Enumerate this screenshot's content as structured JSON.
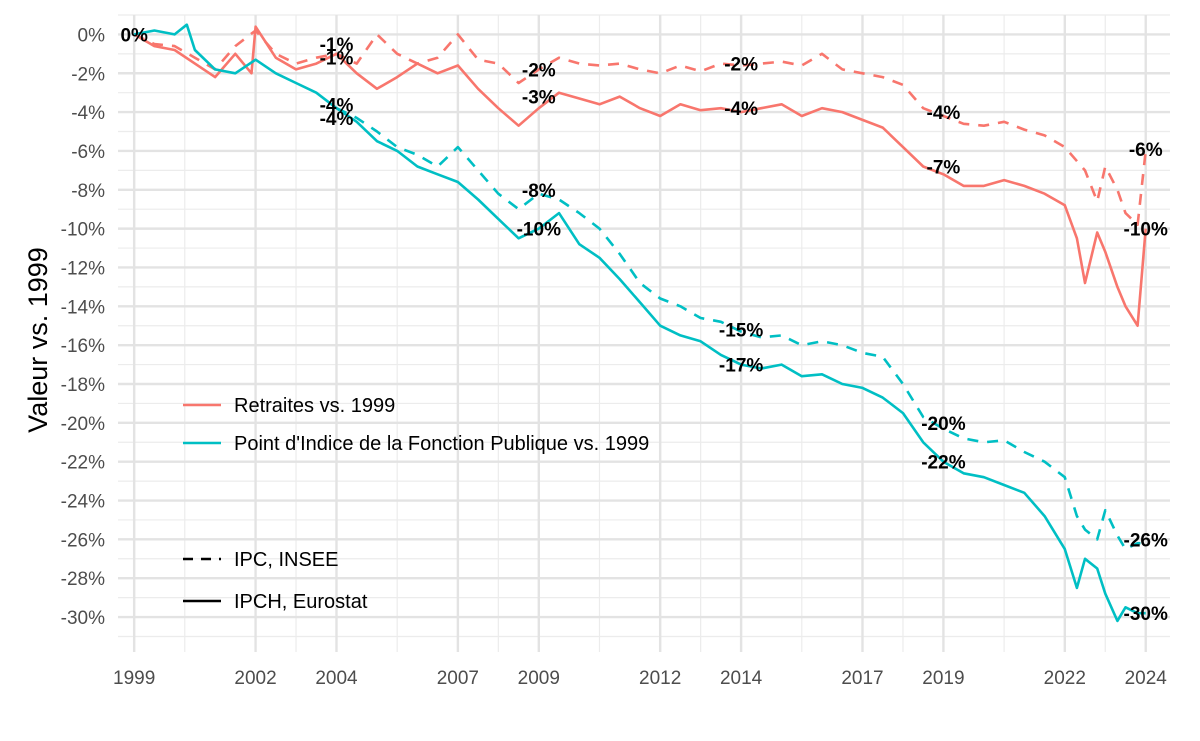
{
  "chart_data": {
    "type": "line",
    "ylabel": "Valeur vs. 1999",
    "xlabel": "",
    "title": "",
    "xlim": [
      1998.6,
      2024.6
    ],
    "ylim": [
      -31.8,
      1.0
    ],
    "x_ticks": [
      1999,
      2002,
      2004,
      2007,
      2009,
      2012,
      2014,
      2017,
      2019,
      2022,
      2024
    ],
    "x_minor_ticks": [
      2000.25,
      2003,
      2005.5,
      2008,
      2010.5,
      2013,
      2015.5,
      2018,
      2020.5,
      2023
    ],
    "y_ticks": [
      0,
      -2,
      -4,
      -6,
      -8,
      -10,
      -12,
      -14,
      -16,
      -18,
      -20,
      -22,
      -24,
      -26,
      -28,
      -30
    ],
    "y_tick_labels": [
      "0%",
      "-2%",
      "-4%",
      "-6%",
      "-8%",
      "-10%",
      "-12%",
      "-14%",
      "-16%",
      "-18%",
      "-20%",
      "-22%",
      "-24%",
      "-26%",
      "-28%",
      "-30%"
    ],
    "x_tick_labels": [
      "1999",
      "2002",
      "2004",
      "2007",
      "2009",
      "2012",
      "2014",
      "2017",
      "2019",
      "2022",
      "2024"
    ],
    "grid": true,
    "legend_color": {
      "position": "middle-left",
      "entries": [
        {
          "key": "retraites",
          "label": "Retraites vs. 1999",
          "color": "#F8766D"
        },
        {
          "key": "point",
          "label": "Point d'Indice de la Fonction Publique vs. 1999",
          "color": "#00BFC4"
        }
      ]
    },
    "legend_linetype": {
      "position": "bottom-left",
      "entries": [
        {
          "key": "dashed",
          "label": "IPC, INSEE",
          "dash": "dashed"
        },
        {
          "key": "solid",
          "label": "IPCH, Eurostat",
          "dash": "solid"
        }
      ]
    },
    "series": [
      {
        "name": "Retraites vs. 1999",
        "color": "#F8766D",
        "linetype": "solid",
        "x": [
          1999.0,
          1999.5,
          2000.0,
          2000.5,
          2001.0,
          2001.5,
          2001.9,
          2002.0,
          2002.5,
          2003.0,
          2003.5,
          2004.0,
          2004.5,
          2005.0,
          2005.5,
          2006.0,
          2006.5,
          2007.0,
          2007.5,
          2008.0,
          2008.5,
          2009.0,
          2009.5,
          2010.0,
          2010.5,
          2011.0,
          2011.5,
          2012.0,
          2012.5,
          2013.0,
          2013.5,
          2014.0,
          2014.5,
          2015.0,
          2015.5,
          2016.0,
          2016.5,
          2017.0,
          2017.5,
          2018.0,
          2018.5,
          2019.0,
          2019.5,
          2020.0,
          2020.5,
          2021.0,
          2021.5,
          2022.0,
          2022.3,
          2022.5,
          2022.8,
          2023.0,
          2023.3,
          2023.5,
          2023.8,
          2024.0
        ],
        "y": [
          0.0,
          -0.6,
          -0.8,
          -1.5,
          -2.2,
          -1.0,
          -2.0,
          0.4,
          -1.2,
          -1.8,
          -1.5,
          -1.0,
          -2.0,
          -2.8,
          -2.2,
          -1.5,
          -2.0,
          -1.6,
          -2.8,
          -3.8,
          -4.7,
          -3.8,
          -3.0,
          -3.3,
          -3.6,
          -3.2,
          -3.8,
          -4.2,
          -3.6,
          -3.9,
          -3.8,
          -4.0,
          -3.8,
          -3.6,
          -4.2,
          -3.8,
          -4.0,
          -4.4,
          -4.8,
          -5.8,
          -6.8,
          -7.2,
          -7.8,
          -7.8,
          -7.5,
          -7.8,
          -8.2,
          -8.8,
          -10.5,
          -12.8,
          -10.2,
          -11.2,
          -13.0,
          -14.0,
          -15.0,
          -10.0
        ]
      },
      {
        "name": "Retraites vs. 1999",
        "color": "#F8766D",
        "linetype": "dashed",
        "x": [
          1999.0,
          1999.5,
          2000.0,
          2000.5,
          2001.0,
          2001.5,
          2002.0,
          2002.5,
          2003.0,
          2003.5,
          2004.0,
          2004.5,
          2005.0,
          2005.5,
          2006.0,
          2006.5,
          2007.0,
          2007.5,
          2008.0,
          2008.5,
          2009.0,
          2009.5,
          2010.0,
          2010.5,
          2011.0,
          2011.5,
          2012.0,
          2012.5,
          2013.0,
          2013.5,
          2014.0,
          2014.5,
          2015.0,
          2015.5,
          2016.0,
          2016.5,
          2017.0,
          2017.5,
          2018.0,
          2018.5,
          2019.0,
          2019.5,
          2020.0,
          2020.5,
          2021.0,
          2021.5,
          2022.0,
          2022.5,
          2022.8,
          2023.0,
          2023.3,
          2023.5,
          2023.8,
          2024.0
        ],
        "y": [
          0.0,
          -0.5,
          -0.6,
          -1.2,
          -1.8,
          -0.6,
          0.2,
          -1.0,
          -1.5,
          -1.2,
          -1.0,
          -1.5,
          0.0,
          -1.0,
          -1.5,
          -1.2,
          0.0,
          -1.3,
          -1.5,
          -2.5,
          -1.8,
          -1.2,
          -1.5,
          -1.6,
          -1.5,
          -1.8,
          -2.0,
          -1.6,
          -1.9,
          -1.5,
          -1.6,
          -1.5,
          -1.4,
          -1.6,
          -1.0,
          -1.8,
          -2.0,
          -2.2,
          -2.6,
          -3.8,
          -4.2,
          -4.6,
          -4.7,
          -4.5,
          -4.9,
          -5.2,
          -5.8,
          -7.0,
          -8.6,
          -6.8,
          -8.0,
          -9.2,
          -9.8,
          -6.0
        ]
      },
      {
        "name": "Point d'Indice de la Fonction Publique vs. 1999",
        "color": "#00BFC4",
        "linetype": "solid",
        "x": [
          1999.0,
          1999.5,
          2000.0,
          2000.3,
          2000.5,
          2001.0,
          2001.5,
          2002.0,
          2002.5,
          2003.0,
          2003.5,
          2004.0,
          2004.5,
          2005.0,
          2005.5,
          2006.0,
          2006.5,
          2007.0,
          2007.5,
          2008.0,
          2008.5,
          2009.0,
          2009.5,
          2010.0,
          2010.5,
          2011.0,
          2011.5,
          2012.0,
          2012.5,
          2013.0,
          2013.5,
          2014.0,
          2014.5,
          2015.0,
          2015.5,
          2016.0,
          2016.5,
          2017.0,
          2017.5,
          2018.0,
          2018.5,
          2019.0,
          2019.5,
          2020.0,
          2020.5,
          2021.0,
          2021.5,
          2022.0,
          2022.3,
          2022.5,
          2022.8,
          2023.0,
          2023.3,
          2023.5,
          2023.8,
          2024.0
        ],
        "y": [
          0.0,
          0.2,
          0.0,
          0.5,
          -0.8,
          -1.8,
          -2.0,
          -1.3,
          -2.0,
          -2.5,
          -3.0,
          -3.8,
          -4.5,
          -5.5,
          -6.0,
          -6.8,
          -7.2,
          -7.6,
          -8.5,
          -9.5,
          -10.5,
          -10.0,
          -9.2,
          -10.8,
          -11.5,
          -12.6,
          -13.8,
          -15.0,
          -15.5,
          -15.8,
          -16.5,
          -17.0,
          -17.2,
          -17.0,
          -17.6,
          -17.5,
          -18.0,
          -18.2,
          -18.7,
          -19.5,
          -21.0,
          -22.0,
          -22.6,
          -22.8,
          -23.2,
          -23.6,
          -24.8,
          -26.5,
          -28.5,
          -27.0,
          -27.5,
          -28.8,
          -30.2,
          -29.5,
          -29.8,
          -29.8
        ]
      },
      {
        "name": "Point d'Indice de la Fonction Publique vs. 1999",
        "color": "#00BFC4",
        "linetype": "dashed",
        "x": [
          2004.0,
          2004.5,
          2005.0,
          2005.5,
          2006.0,
          2006.5,
          2007.0,
          2007.5,
          2008.0,
          2008.5,
          2009.0,
          2009.5,
          2010.0,
          2010.5,
          2011.0,
          2011.5,
          2012.0,
          2012.5,
          2013.0,
          2013.5,
          2014.0,
          2014.5,
          2015.0,
          2015.5,
          2016.0,
          2016.5,
          2017.0,
          2017.5,
          2018.0,
          2018.5,
          2019.0,
          2019.5,
          2020.0,
          2020.5,
          2021.0,
          2021.5,
          2022.0,
          2022.3,
          2022.5,
          2022.8,
          2023.0,
          2023.3,
          2023.5,
          2023.8,
          2024.0
        ],
        "y": [
          -3.8,
          -4.3,
          -5.0,
          -5.8,
          -6.2,
          -6.8,
          -5.8,
          -7.0,
          -8.2,
          -9.0,
          -8.2,
          -8.5,
          -9.2,
          -10.0,
          -11.3,
          -12.8,
          -13.6,
          -14.0,
          -14.6,
          -14.8,
          -15.3,
          -15.6,
          -15.5,
          -16.0,
          -15.8,
          -16.0,
          -16.4,
          -16.6,
          -18.0,
          -19.7,
          -20.3,
          -20.8,
          -21.0,
          -20.9,
          -21.5,
          -22.0,
          -22.8,
          -24.8,
          -25.5,
          -26.0,
          -24.5,
          -25.8,
          -26.5,
          -26.2,
          -26.2
        ]
      }
    ],
    "annotations": [
      {
        "x": 1999.0,
        "y": 0.0,
        "text": "0%"
      },
      {
        "x": 2004.0,
        "y": -0.5,
        "text": "-1%"
      },
      {
        "x": 2004.0,
        "y": -1.2,
        "text": "-1%"
      },
      {
        "x": 2004.0,
        "y": -3.6,
        "text": "-4%"
      },
      {
        "x": 2004.0,
        "y": -4.3,
        "text": "-4%"
      },
      {
        "x": 2009.0,
        "y": -1.8,
        "text": "-2%"
      },
      {
        "x": 2009.0,
        "y": -3.2,
        "text": "-3%"
      },
      {
        "x": 2009.0,
        "y": -8.0,
        "text": "-8%"
      },
      {
        "x": 2009.0,
        "y": -10.0,
        "text": "-10%"
      },
      {
        "x": 2014.0,
        "y": -1.5,
        "text": "-2%"
      },
      {
        "x": 2014.0,
        "y": -3.8,
        "text": "-4%"
      },
      {
        "x": 2014.0,
        "y": -15.2,
        "text": "-15%"
      },
      {
        "x": 2014.0,
        "y": -17.0,
        "text": "-17%"
      },
      {
        "x": 2019.0,
        "y": -4.0,
        "text": "-4%"
      },
      {
        "x": 2019.0,
        "y": -6.8,
        "text": "-7%"
      },
      {
        "x": 2019.0,
        "y": -20.0,
        "text": "-20%"
      },
      {
        "x": 2019.0,
        "y": -22.0,
        "text": "-22%"
      },
      {
        "x": 2024.0,
        "y": -5.9,
        "text": "-6%"
      },
      {
        "x": 2024.0,
        "y": -10.0,
        "text": "-10%"
      },
      {
        "x": 2024.0,
        "y": -26.0,
        "text": "-26%"
      },
      {
        "x": 2024.0,
        "y": -29.8,
        "text": "-30%"
      }
    ]
  }
}
